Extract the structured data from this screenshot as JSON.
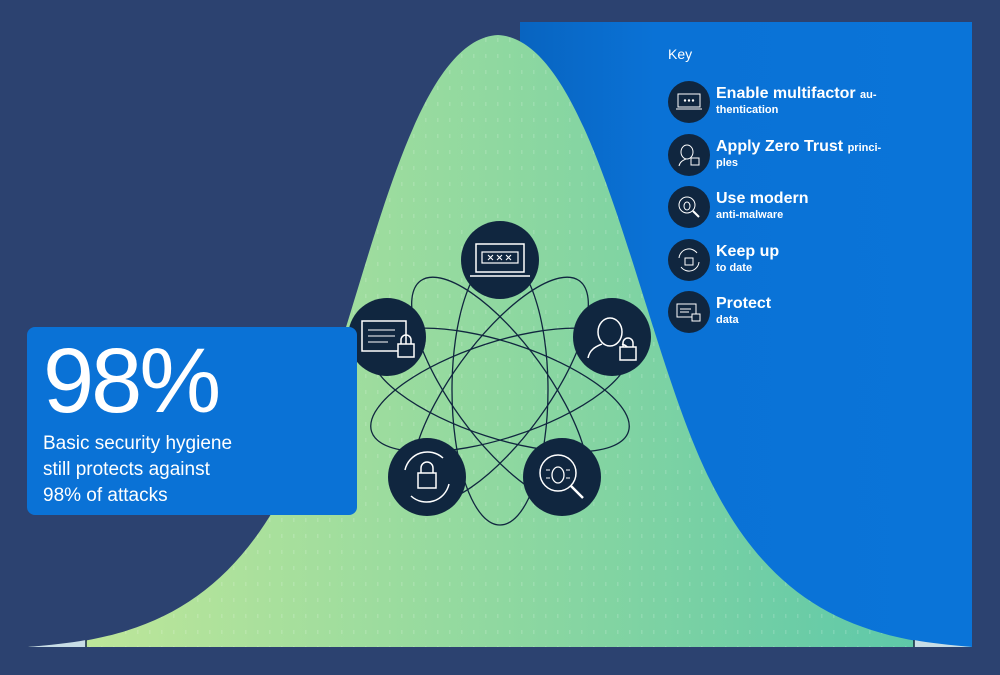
{
  "stat": {
    "value": "98%",
    "caption_lines": [
      "Basic security hygiene",
      "still protects against",
      "98% of attacks"
    ]
  },
  "key": {
    "title": "Key",
    "items": [
      {
        "icon": "laptop-password-icon",
        "main": "Enable multifactor",
        "main_tail": "au-",
        "sub": "thentication"
      },
      {
        "icon": "user-lock-icon",
        "main": "Apply Zero Trust",
        "main_tail": "princi-",
        "sub": "ples"
      },
      {
        "icon": "bug-magnifier-icon",
        "main": "Use modern",
        "main_tail": "",
        "sub": "anti-malware"
      },
      {
        "icon": "refresh-lock-icon",
        "main": "Keep up",
        "main_tail": "",
        "sub": "to date"
      },
      {
        "icon": "document-lock-icon",
        "main": "Protect",
        "main_tail": "",
        "sub": "data"
      }
    ]
  },
  "colors": {
    "background": "#2c4270",
    "panel_blue": "#0a72d6",
    "curve_green_left": "#c4e898",
    "curve_green_right": "#57c6aa",
    "icon_circle": "#10263f"
  }
}
